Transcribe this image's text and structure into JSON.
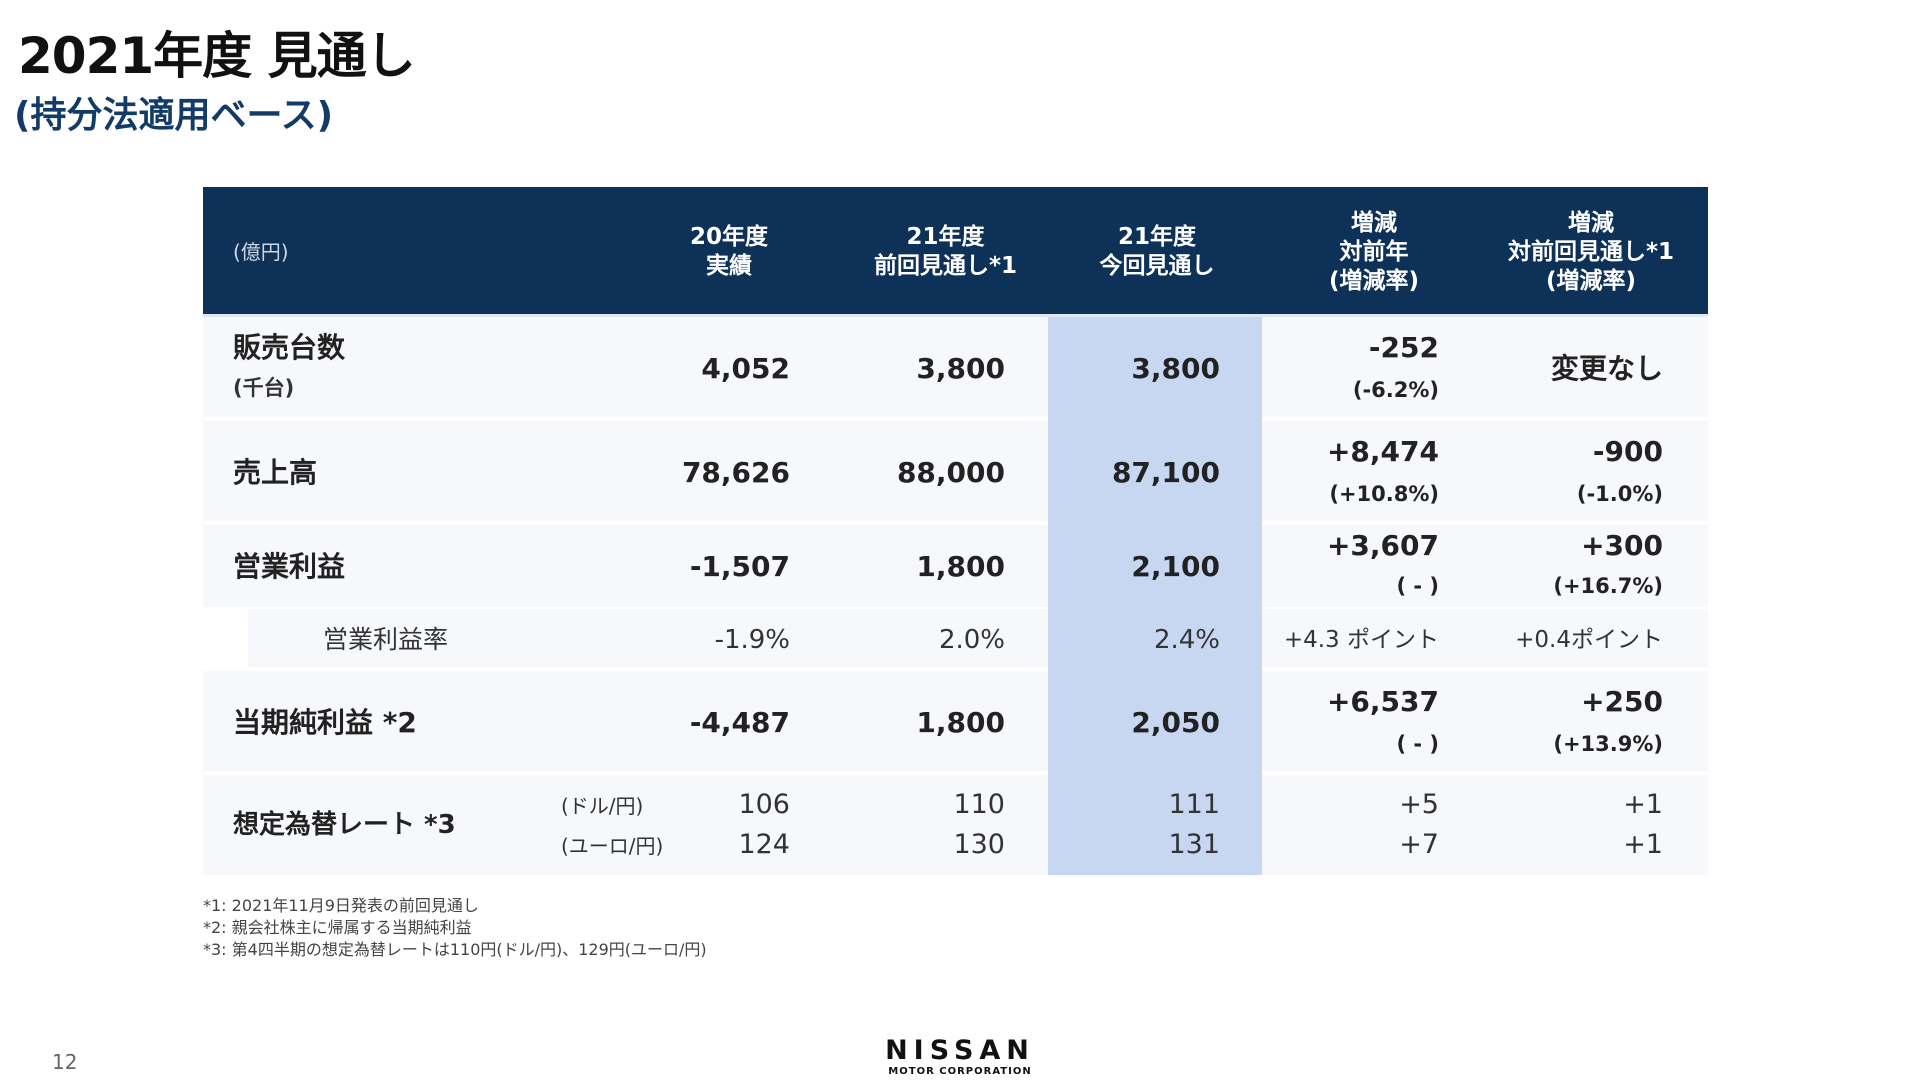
{
  "title": "2021年度 見通し",
  "subtitle": "(持分法適用ベース)",
  "table": {
    "unit": "(億円)",
    "headers": [
      "20年度\n実績",
      "21年度\n前回見通し*1",
      "21年度\n今回見通し",
      "増減\n対前年\n(増減率)",
      "増減\n対前回見通し*1\n(増減率)"
    ],
    "rows": [
      {
        "label": "販売台数",
        "sublabel": "(千台)",
        "values": [
          "4,052",
          "3,800",
          "3,800"
        ],
        "diff_prev_year": "-252",
        "diff_prev_year_rate": "(-6.2%)",
        "diff_prev_forecast": "変更なし",
        "diff_prev_forecast_rate": ""
      },
      {
        "label": "売上高",
        "values": [
          "78,626",
          "88,000",
          "87,100"
        ],
        "diff_prev_year": "+8,474",
        "diff_prev_year_rate": "(+10.8%)",
        "diff_prev_forecast": "-900",
        "diff_prev_forecast_rate": "(-1.0%)"
      },
      {
        "label": "営業利益",
        "values": [
          "-1,507",
          "1,800",
          "2,100"
        ],
        "diff_prev_year": "+3,607",
        "diff_prev_year_rate": "( - )",
        "diff_prev_forecast": "+300",
        "diff_prev_forecast_rate": "(+16.7%)"
      },
      {
        "label": "営業利益率",
        "values": [
          "-1.9%",
          "2.0%",
          "2.4%"
        ],
        "diff_prev_year": "+4.3 ポイント",
        "diff_prev_forecast": "+0.4ポイント"
      },
      {
        "label": "当期純利益 *2",
        "values": [
          "-4,487",
          "1,800",
          "2,050"
        ],
        "diff_prev_year": "+6,537",
        "diff_prev_year_rate": "( - )",
        "diff_prev_forecast": "+250",
        "diff_prev_forecast_rate": "(+13.9%)"
      },
      {
        "label": "想定為替レート *3",
        "sub": [
          {
            "currency": "(ドル/円)",
            "values": [
              "106",
              "110",
              "111"
            ],
            "diff_prev_year": "+5",
            "diff_prev_forecast": "+1"
          },
          {
            "currency": "(ユーロ/円)",
            "values": [
              "124",
              "130",
              "131"
            ],
            "diff_prev_year": "+7",
            "diff_prev_forecast": "+1"
          }
        ]
      }
    ]
  },
  "footnotes": [
    "*1: 2021年11月9日発表の前回見通し",
    "*2: 親会社株主に帰属する当期純利益",
    "*3: 第4四半期の想定為替レートは110円(ドル/円)、129円(ユーロ/円)"
  ],
  "page_number": "12",
  "logo": {
    "name": "NISSAN",
    "sub": "MOTOR CORPORATION"
  }
}
